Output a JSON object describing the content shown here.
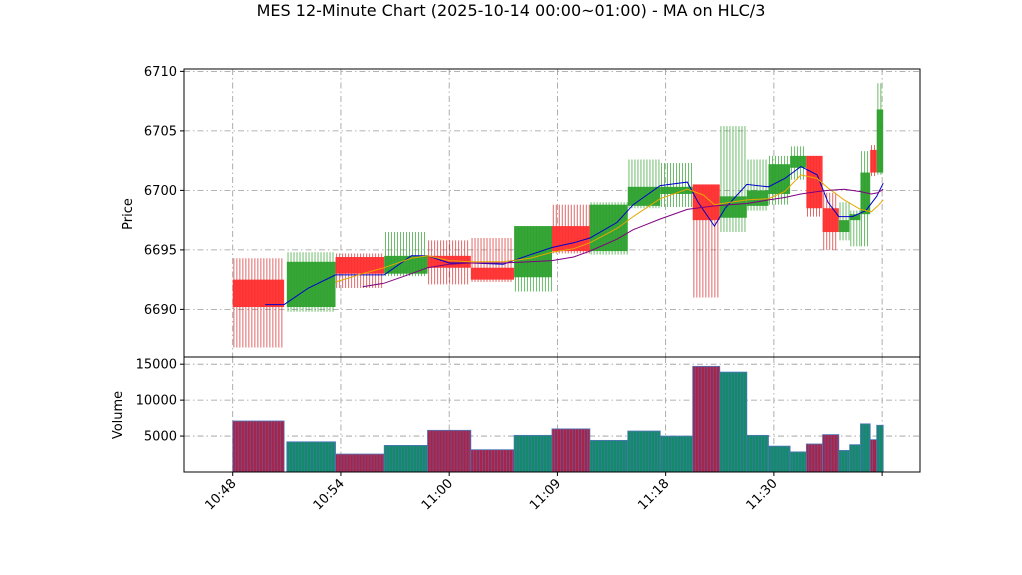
{
  "chart_data": {
    "type": "candlestick",
    "title": "MES 12-Minute Chart (2025-10-14 00:00~01:00) - MA on HLC/3",
    "price_panel": {
      "ylabel": "Price",
      "ylim": [
        6686,
        6710.2
      ],
      "y_ticks": [
        6690,
        6695,
        6700,
        6705,
        6710
      ],
      "y_tick_labels": [
        "6690",
        "6695",
        "6700",
        "6705",
        "6710"
      ],
      "grid": true
    },
    "volume_panel": {
      "ylabel": "Volume",
      "ylim": [
        0,
        16000
      ],
      "y_ticks": [
        5000,
        10000,
        15000
      ],
      "y_tick_labels": [
        "5000",
        "10000",
        "15000"
      ],
      "grid": true
    },
    "x_domain": [
      -0.9,
      12.7
    ],
    "x_ticks": [
      {
        "x": 0,
        "label": "10:48"
      },
      {
        "x": 2,
        "label": "10:54"
      },
      {
        "x": 4,
        "label": "11:00"
      },
      {
        "x": 6,
        "label": "11:09"
      },
      {
        "x": 8,
        "label": "11:18"
      },
      {
        "x": 10,
        "label": "11:30"
      },
      {
        "x": 12,
        "label": ""
      }
    ],
    "candles": [
      {
        "x0": 0.0,
        "x1": 0.95,
        "open": 6692.5,
        "high": 6694.3,
        "low": 6686.8,
        "close": 6690.2
      },
      {
        "x0": 1.0,
        "x1": 1.9,
        "open": 6690.2,
        "high": 6694.8,
        "low": 6689.8,
        "close": 6694.0
      },
      {
        "x0": 1.9,
        "x1": 2.8,
        "open": 6694.4,
        "high": 6694.7,
        "low": 6691.8,
        "close": 6693.0
      },
      {
        "x0": 2.8,
        "x1": 3.6,
        "open": 6693.0,
        "high": 6696.5,
        "low": 6692.8,
        "close": 6694.5
      },
      {
        "x0": 3.6,
        "x1": 4.4,
        "open": 6694.5,
        "high": 6695.8,
        "low": 6692.1,
        "close": 6693.5
      },
      {
        "x0": 4.4,
        "x1": 5.2,
        "open": 6693.5,
        "high": 6696.0,
        "low": 6692.3,
        "close": 6692.5
      },
      {
        "x0": 5.2,
        "x1": 5.9,
        "open": 6692.7,
        "high": 6697.0,
        "low": 6691.5,
        "close": 6697.0
      },
      {
        "x0": 5.9,
        "x1": 6.6,
        "open": 6697.0,
        "high": 6698.8,
        "low": 6694.7,
        "close": 6694.9
      },
      {
        "x0": 6.6,
        "x1": 7.3,
        "open": 6694.9,
        "high": 6699.0,
        "low": 6694.6,
        "close": 6698.8
      },
      {
        "x0": 7.3,
        "x1": 7.9,
        "open": 6698.7,
        "high": 6702.6,
        "low": 6698.5,
        "close": 6700.3
      },
      {
        "x0": 7.9,
        "x1": 8.5,
        "open": 6699.7,
        "high": 6702.3,
        "low": 6698.6,
        "close": 6700.3
      },
      {
        "x0": 8.5,
        "x1": 9.0,
        "open": 6700.5,
        "high": 6700.5,
        "low": 6691.0,
        "close": 6697.5
      },
      {
        "x0": 9.0,
        "x1": 9.5,
        "open": 6697.7,
        "high": 6705.4,
        "low": 6696.5,
        "close": 6699.5
      },
      {
        "x0": 9.5,
        "x1": 9.9,
        "open": 6698.7,
        "high": 6702.6,
        "low": 6698.3,
        "close": 6700.0
      },
      {
        "x0": 9.9,
        "x1": 10.3,
        "open": 6699.7,
        "high": 6702.9,
        "low": 6698.8,
        "close": 6702.2
      },
      {
        "x0": 10.3,
        "x1": 10.6,
        "open": 6701.9,
        "high": 6703.7,
        "low": 6700.9,
        "close": 6702.9
      },
      {
        "x0": 10.6,
        "x1": 10.9,
        "open": 6702.9,
        "high": 6702.9,
        "low": 6697.8,
        "close": 6698.5
      },
      {
        "x0": 10.9,
        "x1": 11.2,
        "open": 6698.5,
        "high": 6699.8,
        "low": 6695.0,
        "close": 6696.5
      },
      {
        "x0": 11.2,
        "x1": 11.4,
        "open": 6696.5,
        "high": 6699.0,
        "low": 6695.8,
        "close": 6697.5
      },
      {
        "x0": 11.4,
        "x1": 11.6,
        "open": 6697.5,
        "high": 6698.3,
        "low": 6695.3,
        "close": 6698.0
      },
      {
        "x0": 11.6,
        "x1": 11.78,
        "open": 6698.0,
        "high": 6703.3,
        "low": 6695.3,
        "close": 6701.5
      },
      {
        "x0": 11.78,
        "x1": 11.9,
        "open": 6703.4,
        "high": 6703.8,
        "low": 6701.2,
        "close": 6701.5
      },
      {
        "x0": 11.9,
        "x1": 12.02,
        "open": 6701.5,
        "high": 6709.0,
        "low": 6701.3,
        "close": 6706.8
      }
    ],
    "volumes": [
      7100,
      4200,
      2500,
      3700,
      5800,
      3100,
      5100,
      6000,
      4400,
      5700,
      5000,
      14700,
      13900,
      5100,
      3600,
      2800,
      3900,
      5200,
      3000,
      3800,
      6700,
      4500,
      6500
    ],
    "ma_lines": [
      {
        "color": "#0000cc",
        "points": [
          [
            0.6,
            6690.4
          ],
          [
            0.95,
            6690.4
          ],
          [
            1.4,
            6691.8
          ],
          [
            1.9,
            6692.9
          ],
          [
            2.4,
            6692.9
          ],
          [
            2.8,
            6692.9
          ],
          [
            3.3,
            6694.5
          ],
          [
            3.6,
            6694.5
          ],
          [
            4.0,
            6693.9
          ],
          [
            4.4,
            6693.9
          ],
          [
            5.0,
            6693.8
          ],
          [
            5.5,
            6694.6
          ],
          [
            5.9,
            6695.2
          ],
          [
            6.3,
            6695.6
          ],
          [
            6.6,
            6696.0
          ],
          [
            7.1,
            6697.3
          ],
          [
            7.4,
            6698.8
          ],
          [
            7.9,
            6700.4
          ],
          [
            8.4,
            6700.7
          ],
          [
            8.6,
            6699.0
          ],
          [
            8.9,
            6697.0
          ],
          [
            9.1,
            6698.5
          ],
          [
            9.5,
            6700.5
          ],
          [
            9.9,
            6700.3
          ],
          [
            10.2,
            6701.0
          ],
          [
            10.5,
            6702.0
          ],
          [
            10.8,
            6701.3
          ],
          [
            11.0,
            6699.0
          ],
          [
            11.2,
            6697.8
          ],
          [
            11.45,
            6697.8
          ],
          [
            11.7,
            6698.3
          ],
          [
            11.9,
            6699.5
          ],
          [
            12.02,
            6700.6
          ]
        ]
      },
      {
        "color": "#e6a700",
        "points": [
          [
            1.9,
            6692.3
          ],
          [
            2.4,
            6693.0
          ],
          [
            2.8,
            6693.5
          ],
          [
            3.3,
            6694.3
          ],
          [
            3.6,
            6694.5
          ],
          [
            4.0,
            6694.1
          ],
          [
            4.4,
            6694.0
          ],
          [
            5.0,
            6694.0
          ],
          [
            5.5,
            6694.3
          ],
          [
            5.9,
            6694.8
          ],
          [
            6.3,
            6695.1
          ],
          [
            6.6,
            6695.6
          ],
          [
            7.1,
            6696.8
          ],
          [
            7.4,
            6697.8
          ],
          [
            7.9,
            6699.3
          ],
          [
            8.4,
            6700.1
          ],
          [
            8.7,
            6699.6
          ],
          [
            8.9,
            6698.8
          ],
          [
            9.2,
            6699.0
          ],
          [
            9.5,
            6699.2
          ],
          [
            9.9,
            6699.3
          ],
          [
            10.2,
            6699.9
          ],
          [
            10.5,
            6701.3
          ],
          [
            10.8,
            6701.0
          ],
          [
            11.0,
            6700.2
          ],
          [
            11.3,
            6699.2
          ],
          [
            11.6,
            6698.4
          ],
          [
            11.8,
            6698.2
          ],
          [
            11.92,
            6698.7
          ],
          [
            12.02,
            6699.2
          ]
        ]
      },
      {
        "color": "#800080",
        "points": [
          [
            2.4,
            6691.9
          ],
          [
            2.8,
            6692.2
          ],
          [
            3.3,
            6693.0
          ],
          [
            3.6,
            6693.5
          ],
          [
            4.0,
            6693.8
          ],
          [
            4.4,
            6693.9
          ],
          [
            5.0,
            6693.9
          ],
          [
            5.5,
            6694.0
          ],
          [
            5.9,
            6694.1
          ],
          [
            6.3,
            6694.4
          ],
          [
            6.6,
            6694.9
          ],
          [
            7.1,
            6695.9
          ],
          [
            7.4,
            6696.7
          ],
          [
            7.9,
            6697.6
          ],
          [
            8.4,
            6698.4
          ],
          [
            8.9,
            6698.7
          ],
          [
            9.5,
            6698.9
          ],
          [
            9.9,
            6699.2
          ],
          [
            10.2,
            6699.4
          ],
          [
            10.5,
            6699.7
          ],
          [
            10.8,
            6699.9
          ],
          [
            11.0,
            6700.0
          ],
          [
            11.3,
            6700.1
          ],
          [
            11.6,
            6699.9
          ],
          [
            11.8,
            6699.7
          ],
          [
            11.92,
            6699.8
          ],
          [
            12.02,
            6700.1
          ]
        ]
      }
    ],
    "colors": {
      "up": "#2ca02c",
      "down": "#ff2e2e",
      "up_wick": "#2ca02c",
      "down_wick": "#d62728",
      "volume_up": "#138a6a",
      "volume_down": "#a8234a",
      "volume_edge": "#4f76b8",
      "grid": "#9a9a9a"
    }
  }
}
